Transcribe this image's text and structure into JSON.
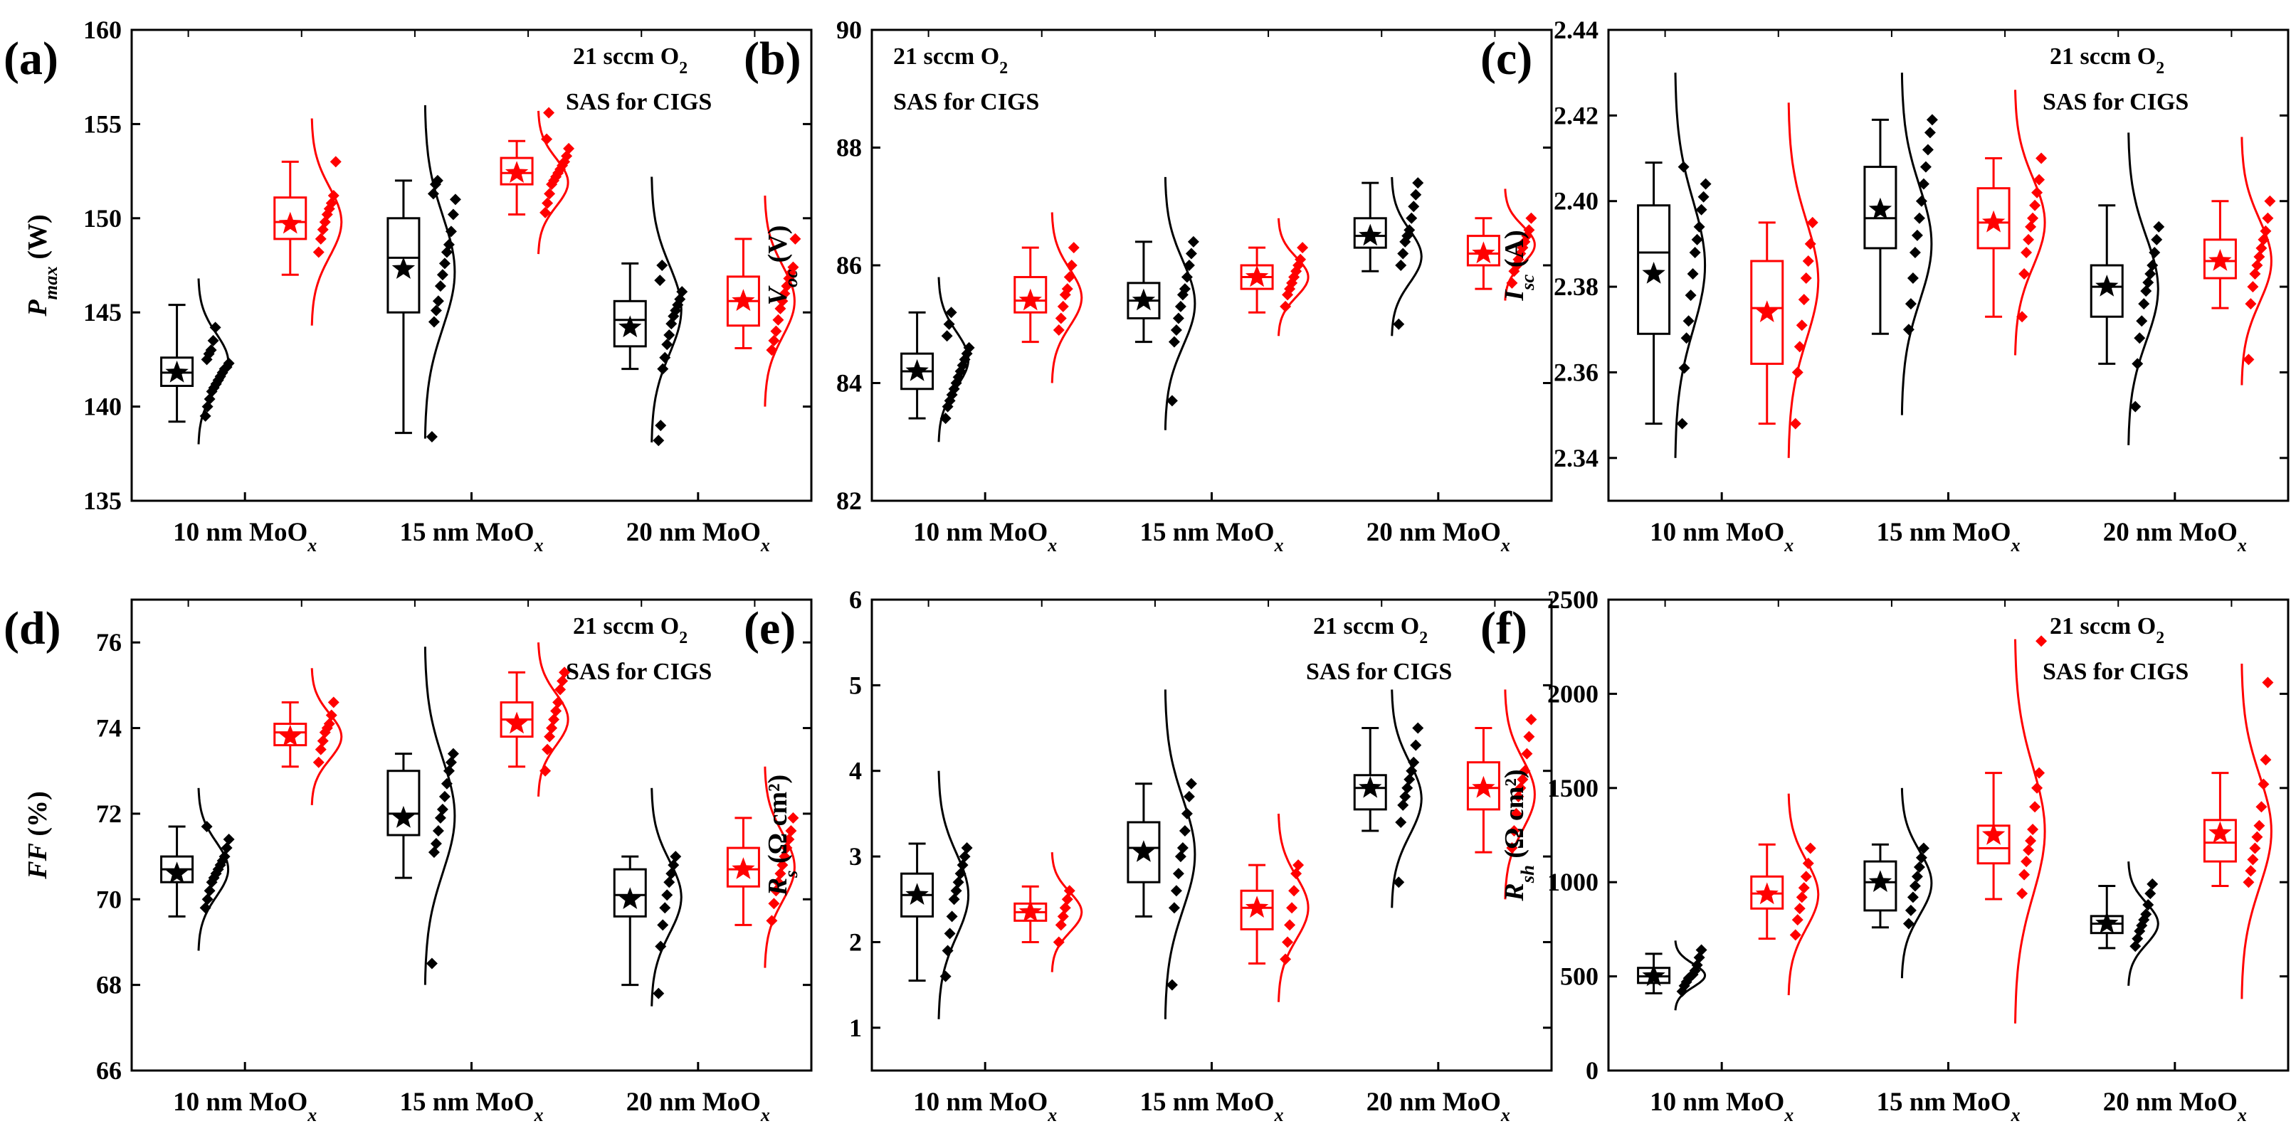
{
  "colors": {
    "group_a": "#000000",
    "group_b": "#ff0000"
  },
  "annotation": {
    "line1_text": "21 sccm O",
    "line1_sub": "2",
    "line2": "SAS for CIGS"
  },
  "categories": [
    "10 nm MoO",
    "15 nm MoO",
    "20 nm MoO"
  ],
  "category_sub": "x",
  "chart_data": [
    {
      "type": "box",
      "panel": "(a)",
      "ylabel_main": "P",
      "ylabel_sub": "max",
      "ylabel_unit": " (W)",
      "ylim": [
        135,
        160
      ],
      "yticks": [
        135,
        140,
        145,
        150,
        155,
        160
      ],
      "grid": false,
      "annotation_pos": "top-right",
      "series": [
        {
          "q1": 141.1,
          "median": 141.8,
          "q3": 142.6,
          "whislo": 139.2,
          "whishi": 145.4,
          "mean": 141.8,
          "curve_min": 138.0,
          "curve_max": 146.8,
          "points": [
            139.5,
            140.0,
            140.4,
            140.8,
            141.0,
            141.2,
            141.4,
            141.6,
            141.8,
            142.0,
            142.1,
            142.3,
            142.5,
            142.8,
            143.0,
            143.5,
            144.2
          ]
        },
        {
          "q1": 148.9,
          "median": 149.8,
          "q3": 151.1,
          "whislo": 147.0,
          "whishi": 153.0,
          "mean": 149.7,
          "curve_min": 144.3,
          "curve_max": 155.3,
          "points": [
            148.2,
            148.9,
            149.4,
            149.8,
            150.2,
            150.5,
            150.8,
            151.2,
            153.0
          ]
        },
        {
          "q1": 145.0,
          "median": 147.9,
          "q3": 150.0,
          "whislo": 138.6,
          "whishi": 152.0,
          "mean": 147.3,
          "curve_min": 138.3,
          "curve_max": 156.0,
          "points": [
            138.4,
            144.5,
            145.1,
            145.6,
            146.4,
            147.0,
            147.6,
            148.2,
            148.6,
            149.3,
            150.2,
            151.0,
            151.3,
            151.8,
            152.0
          ]
        },
        {
          "q1": 151.8,
          "median": 152.4,
          "q3": 153.2,
          "whislo": 150.2,
          "whishi": 154.1,
          "mean": 152.4,
          "curve_min": 148.1,
          "curve_max": 155.7,
          "points": [
            150.3,
            150.8,
            151.3,
            151.8,
            152.0,
            152.2,
            152.4,
            152.6,
            152.8,
            153.0,
            153.3,
            153.7,
            154.2,
            155.6
          ]
        },
        {
          "q1": 143.2,
          "median": 144.6,
          "q3": 145.6,
          "whislo": 142.0,
          "whishi": 147.6,
          "mean": 144.2,
          "curve_min": 138.1,
          "curve_max": 152.2,
          "points": [
            138.2,
            139.0,
            142.0,
            142.6,
            143.3,
            143.8,
            144.4,
            144.8,
            145.1,
            145.4,
            145.7,
            146.1,
            146.7,
            147.5
          ]
        },
        {
          "q1": 144.3,
          "median": 145.6,
          "q3": 146.9,
          "whislo": 143.1,
          "whishi": 148.9,
          "mean": 145.6,
          "curve_min": 140.0,
          "curve_max": 151.2,
          "points": [
            143.0,
            143.5,
            144.0,
            144.6,
            145.2,
            145.6,
            146.0,
            146.4,
            146.8,
            147.1,
            147.4,
            148.9
          ]
        }
      ]
    },
    {
      "type": "box",
      "panel": "(b)",
      "ylabel_main": "V",
      "ylabel_sub": "oc",
      "ylabel_unit": " (V)",
      "ylim": [
        82,
        90
      ],
      "yticks": [
        82,
        84,
        86,
        88,
        90
      ],
      "grid": false,
      "annotation_pos": "top-left",
      "series": [
        {
          "q1": 83.9,
          "median": 84.2,
          "q3": 84.5,
          "whislo": 83.4,
          "whishi": 85.2,
          "mean": 84.2,
          "curve_min": 83.0,
          "curve_max": 85.8,
          "points": [
            83.4,
            83.6,
            83.7,
            83.8,
            83.9,
            84.0,
            84.1,
            84.2,
            84.3,
            84.4,
            84.5,
            84.6,
            84.8,
            85.0,
            85.2
          ]
        },
        {
          "q1": 85.2,
          "median": 85.4,
          "q3": 85.8,
          "whislo": 84.7,
          "whishi": 86.3,
          "mean": 85.4,
          "curve_min": 84.0,
          "curve_max": 86.9,
          "points": [
            84.9,
            85.1,
            85.3,
            85.5,
            85.6,
            85.8,
            86.0,
            86.3
          ]
        },
        {
          "q1": 85.1,
          "median": 85.4,
          "q3": 85.7,
          "whislo": 84.7,
          "whishi": 86.4,
          "mean": 85.4,
          "curve_min": 83.2,
          "curve_max": 87.5,
          "points": [
            83.7,
            84.7,
            84.9,
            85.1,
            85.3,
            85.5,
            85.6,
            85.8,
            86.0,
            86.2,
            86.4
          ]
        },
        {
          "q1": 85.6,
          "median": 85.8,
          "q3": 86.0,
          "whislo": 85.2,
          "whishi": 86.3,
          "mean": 85.8,
          "curve_min": 84.8,
          "curve_max": 86.8,
          "points": [
            85.3,
            85.5,
            85.6,
            85.7,
            85.8,
            85.9,
            86.0,
            86.1,
            86.3
          ]
        },
        {
          "q1": 86.3,
          "median": 86.5,
          "q3": 86.8,
          "whislo": 85.9,
          "whishi": 87.4,
          "mean": 86.5,
          "curve_min": 84.8,
          "curve_max": 87.5,
          "points": [
            85.0,
            86.0,
            86.2,
            86.4,
            86.5,
            86.6,
            86.8,
            87.0,
            87.2,
            87.4
          ]
        },
        {
          "q1": 86.0,
          "median": 86.2,
          "q3": 86.5,
          "whislo": 85.6,
          "whishi": 86.8,
          "mean": 86.2,
          "curve_min": 85.4,
          "curve_max": 87.3,
          "points": [
            85.7,
            85.9,
            86.0,
            86.1,
            86.2,
            86.3,
            86.4,
            86.5,
            86.6,
            86.8
          ]
        }
      ]
    },
    {
      "type": "box",
      "panel": "(c)",
      "ylabel_main": "I",
      "ylabel_sub": "sc",
      "ylabel_unit": " (A)",
      "ylim": [
        2.33,
        2.44
      ],
      "yticks": [
        2.34,
        2.36,
        2.38,
        2.4,
        2.42,
        2.44
      ],
      "grid": false,
      "annotation_pos": "top-right",
      "series": [
        {
          "q1": 2.369,
          "median": 2.388,
          "q3": 2.399,
          "whislo": 2.348,
          "whishi": 2.409,
          "mean": 2.383,
          "curve_min": 2.34,
          "curve_max": 2.43,
          "points": [
            2.348,
            2.361,
            2.368,
            2.372,
            2.378,
            2.383,
            2.388,
            2.391,
            2.394,
            2.398,
            2.401,
            2.404,
            2.408
          ]
        },
        {
          "q1": 2.362,
          "median": 2.375,
          "q3": 2.386,
          "whislo": 2.348,
          "whishi": 2.395,
          "mean": 2.374,
          "curve_min": 2.34,
          "curve_max": 2.423,
          "points": [
            2.348,
            2.36,
            2.366,
            2.371,
            2.377,
            2.382,
            2.386,
            2.39,
            2.395
          ]
        },
        {
          "q1": 2.389,
          "median": 2.396,
          "q3": 2.408,
          "whislo": 2.369,
          "whishi": 2.419,
          "mean": 2.398,
          "curve_min": 2.35,
          "curve_max": 2.43,
          "points": [
            2.37,
            2.376,
            2.382,
            2.388,
            2.392,
            2.396,
            2.4,
            2.404,
            2.408,
            2.412,
            2.416,
            2.419
          ]
        },
        {
          "q1": 2.389,
          "median": 2.395,
          "q3": 2.403,
          "whislo": 2.373,
          "whishi": 2.41,
          "mean": 2.395,
          "curve_min": 2.364,
          "curve_max": 2.426,
          "points": [
            2.373,
            2.383,
            2.388,
            2.391,
            2.394,
            2.396,
            2.399,
            2.402,
            2.405,
            2.41
          ]
        },
        {
          "q1": 2.373,
          "median": 2.38,
          "q3": 2.385,
          "whislo": 2.362,
          "whishi": 2.399,
          "mean": 2.38,
          "curve_min": 2.343,
          "curve_max": 2.416,
          "points": [
            2.352,
            2.362,
            2.368,
            2.372,
            2.376,
            2.379,
            2.381,
            2.383,
            2.385,
            2.388,
            2.391,
            2.394
          ]
        },
        {
          "q1": 2.382,
          "median": 2.386,
          "q3": 2.391,
          "whislo": 2.375,
          "whishi": 2.4,
          "mean": 2.386,
          "curve_min": 2.357,
          "curve_max": 2.415,
          "points": [
            2.363,
            2.376,
            2.38,
            2.383,
            2.385,
            2.387,
            2.389,
            2.391,
            2.393,
            2.396,
            2.4
          ]
        }
      ]
    },
    {
      "type": "box",
      "panel": "(d)",
      "ylabel_main": "FF",
      "ylabel_sub": "",
      "ylabel_unit": " (%)",
      "ylim": [
        66,
        77
      ],
      "yticks": [
        66,
        68,
        70,
        72,
        74,
        76
      ],
      "grid": false,
      "annotation_pos": "top-right",
      "series": [
        {
          "q1": 70.4,
          "median": 70.7,
          "q3": 71.0,
          "whislo": 69.6,
          "whishi": 71.7,
          "mean": 70.6,
          "curve_min": 68.8,
          "curve_max": 72.6,
          "points": [
            69.8,
            70.0,
            70.2,
            70.4,
            70.5,
            70.6,
            70.7,
            70.8,
            70.9,
            71.0,
            71.2,
            71.4,
            71.7
          ]
        },
        {
          "q1": 73.6,
          "median": 73.9,
          "q3": 74.1,
          "whislo": 73.1,
          "whishi": 74.6,
          "mean": 73.8,
          "curve_min": 72.2,
          "curve_max": 75.4,
          "points": [
            73.2,
            73.5,
            73.7,
            73.9,
            74.0,
            74.1,
            74.3,
            74.6
          ]
        },
        {
          "q1": 71.5,
          "median": 72.0,
          "q3": 73.0,
          "whislo": 70.5,
          "whishi": 73.4,
          "mean": 71.9,
          "curve_min": 68.0,
          "curve_max": 75.9,
          "points": [
            68.5,
            71.1,
            71.3,
            71.6,
            71.9,
            72.1,
            72.4,
            72.7,
            73.0,
            73.2,
            73.4
          ]
        },
        {
          "q1": 73.8,
          "median": 74.2,
          "q3": 74.6,
          "whislo": 73.1,
          "whishi": 75.3,
          "mean": 74.1,
          "curve_min": 72.4,
          "curve_max": 76.0,
          "points": [
            73.0,
            73.5,
            73.8,
            74.0,
            74.2,
            74.4,
            74.6,
            74.9,
            75.1,
            75.3
          ]
        },
        {
          "q1": 69.6,
          "median": 70.1,
          "q3": 70.7,
          "whislo": 68.0,
          "whishi": 71.0,
          "mean": 70.0,
          "curve_min": 67.5,
          "curve_max": 72.6,
          "points": [
            67.8,
            68.9,
            69.4,
            69.8,
            70.1,
            70.4,
            70.6,
            70.8,
            71.0
          ]
        },
        {
          "q1": 70.3,
          "median": 70.7,
          "q3": 71.2,
          "whislo": 69.4,
          "whishi": 71.9,
          "mean": 70.7,
          "curve_min": 68.4,
          "curve_max": 73.1,
          "points": [
            69.5,
            69.9,
            70.2,
            70.4,
            70.6,
            70.8,
            71.0,
            71.2,
            71.4,
            71.6,
            71.9
          ]
        }
      ]
    },
    {
      "type": "box",
      "panel": "(e)",
      "ylabel_main": "R",
      "ylabel_sub": "s",
      "ylabel_unit": " (Ω cm²)",
      "ylim": [
        0.5,
        6
      ],
      "yticks": [
        1,
        2,
        3,
        4,
        5,
        6
      ],
      "grid": false,
      "annotation_pos": "top-right",
      "series": [
        {
          "q1": 2.3,
          "median": 2.55,
          "q3": 2.8,
          "whislo": 1.55,
          "whishi": 3.15,
          "mean": 2.55,
          "curve_min": 1.1,
          "curve_max": 4.0,
          "points": [
            1.6,
            1.9,
            2.1,
            2.3,
            2.5,
            2.6,
            2.7,
            2.8,
            2.9,
            3.0,
            3.1
          ]
        },
        {
          "q1": 2.25,
          "median": 2.35,
          "q3": 2.45,
          "whislo": 2.0,
          "whishi": 2.65,
          "mean": 2.35,
          "curve_min": 1.65,
          "curve_max": 3.05,
          "points": [
            2.0,
            2.2,
            2.3,
            2.4,
            2.5,
            2.6
          ]
        },
        {
          "q1": 2.7,
          "median": 3.1,
          "q3": 3.4,
          "whislo": 2.3,
          "whishi": 3.85,
          "mean": 3.05,
          "curve_min": 1.1,
          "curve_max": 4.95,
          "points": [
            1.5,
            2.4,
            2.6,
            2.8,
            3.0,
            3.1,
            3.3,
            3.5,
            3.7,
            3.85
          ]
        },
        {
          "q1": 2.15,
          "median": 2.4,
          "q3": 2.6,
          "whislo": 1.75,
          "whishi": 2.9,
          "mean": 2.4,
          "curve_min": 1.3,
          "curve_max": 3.5,
          "points": [
            1.8,
            2.0,
            2.2,
            2.4,
            2.6,
            2.8,
            2.9
          ]
        },
        {
          "q1": 3.55,
          "median": 3.8,
          "q3": 3.95,
          "whislo": 3.3,
          "whishi": 4.5,
          "mean": 3.8,
          "curve_min": 2.4,
          "curve_max": 4.95,
          "points": [
            2.7,
            3.4,
            3.6,
            3.7,
            3.8,
            3.9,
            4.0,
            4.1,
            4.3,
            4.5
          ]
        },
        {
          "q1": 3.55,
          "median": 3.8,
          "q3": 4.1,
          "whislo": 3.05,
          "whishi": 4.5,
          "mean": 3.8,
          "curve_min": 2.5,
          "curve_max": 4.95,
          "points": [
            3.1,
            3.3,
            3.5,
            3.7,
            3.8,
            3.9,
            4.0,
            4.2,
            4.4,
            4.6
          ]
        }
      ]
    },
    {
      "type": "box",
      "panel": "(f)",
      "ylabel_main": "R",
      "ylabel_sub": "sh",
      "ylabel_unit": " (Ω cm²)",
      "ylim": [
        0,
        2500
      ],
      "yticks": [
        0,
        500,
        1000,
        1500,
        2000,
        2500
      ],
      "grid": false,
      "annotation_pos": "top-right",
      "series": [
        {
          "q1": 465,
          "median": 500,
          "q3": 545,
          "whislo": 410,
          "whishi": 620,
          "mean": 500,
          "curve_min": 320,
          "curve_max": 690,
          "points": [
            420,
            450,
            470,
            490,
            500,
            510,
            530,
            560,
            600,
            640
          ]
        },
        {
          "q1": 860,
          "median": 940,
          "q3": 1030,
          "whislo": 700,
          "whishi": 1200,
          "mean": 935,
          "curve_min": 400,
          "curve_max": 1470,
          "points": [
            720,
            800,
            860,
            920,
            970,
            1030,
            1100,
            1180
          ]
        },
        {
          "q1": 850,
          "median": 1000,
          "q3": 1110,
          "whislo": 760,
          "whishi": 1200,
          "mean": 1000,
          "curve_min": 490,
          "curve_max": 1500,
          "points": [
            780,
            850,
            920,
            980,
            1030,
            1080,
            1130,
            1180
          ]
        },
        {
          "q1": 1100,
          "median": 1180,
          "q3": 1300,
          "whislo": 910,
          "whishi": 1580,
          "mean": 1250,
          "curve_min": 250,
          "curve_max": 2290,
          "points": [
            940,
            1040,
            1110,
            1170,
            1220,
            1280,
            1400,
            1500,
            1580,
            2280
          ]
        },
        {
          "q1": 730,
          "median": 780,
          "q3": 820,
          "whislo": 650,
          "whishi": 980,
          "mean": 780,
          "curve_min": 450,
          "curve_max": 1110,
          "points": [
            660,
            700,
            740,
            770,
            800,
            830,
            880,
            940,
            990
          ]
        },
        {
          "q1": 1110,
          "median": 1210,
          "q3": 1330,
          "whislo": 980,
          "whishi": 1580,
          "mean": 1260,
          "curve_min": 380,
          "curve_max": 2160,
          "points": [
            1000,
            1060,
            1120,
            1180,
            1240,
            1300,
            1400,
            1520,
            1650,
            2060
          ]
        }
      ]
    }
  ]
}
